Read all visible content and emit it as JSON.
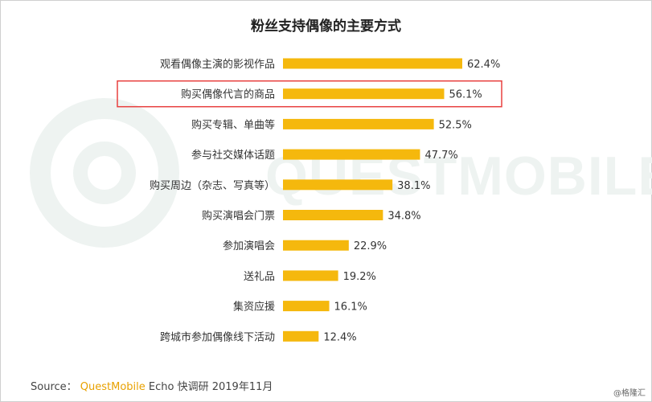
{
  "title": "粉丝支持偶像的主要方式",
  "watermark": "QUESTMOBILE",
  "source": {
    "label": "Source：",
    "brand": "QuestMobile",
    "rest": "Echo 快调研 2019年11月"
  },
  "corner_mark": "@格隆汇",
  "colors": {
    "bar": "#f5b80d",
    "highlight_box": "#e8403f",
    "watermark": "#eef3f1"
  },
  "chart_data": {
    "type": "bar",
    "orientation": "horizontal",
    "title": "粉丝支持偶像的主要方式",
    "categories": [
      "观看偶像主演的影视作品",
      "购买偶像代言的商品",
      "购买专辑、单曲等",
      "参与社交媒体话题",
      "购买周边（杂志、写真等）",
      "购买演唱会门票",
      "参加演唱会",
      "送礼品",
      "集资应援",
      "跨城市参加偶像线下活动"
    ],
    "values": [
      62.4,
      56.1,
      52.5,
      47.7,
      38.1,
      34.8,
      22.9,
      19.2,
      16.1,
      12.4
    ],
    "value_labels": [
      "62.4%",
      "56.1%",
      "52.5%",
      "47.7%",
      "38.1%",
      "34.8%",
      "22.9%",
      "19.2%",
      "16.1%",
      "12.4%"
    ],
    "highlighted_category": "购买偶像代言的商品",
    "xlim": [
      0,
      62.4
    ]
  }
}
